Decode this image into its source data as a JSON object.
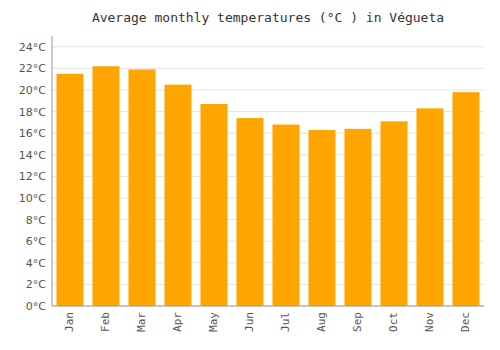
{
  "chart_data": {
    "type": "bar",
    "title": "Average monthly temperatures (°C ) in Végueta",
    "categories": [
      "Jan",
      "Feb",
      "Mar",
      "Apr",
      "May",
      "Jun",
      "Jul",
      "Aug",
      "Sep",
      "Oct",
      "Nov",
      "Dec"
    ],
    "values": [
      21.5,
      22.2,
      21.9,
      20.5,
      18.7,
      17.4,
      16.8,
      16.3,
      16.4,
      17.1,
      18.3,
      19.8
    ],
    "color": "#FFA500",
    "ylim": [
      0,
      25
    ],
    "yticks": [
      {
        "value": 0,
        "label": "0°C"
      },
      {
        "value": 2,
        "label": "2°C"
      },
      {
        "value": 4,
        "label": "4°C"
      },
      {
        "value": 6,
        "label": "6°C"
      },
      {
        "value": 8,
        "label": "8°C"
      },
      {
        "value": 10,
        "label": "10°C"
      },
      {
        "value": 12,
        "label": "12°C"
      },
      {
        "value": 14,
        "label": "14°C"
      },
      {
        "value": 16,
        "label": "16°C"
      },
      {
        "value": 18,
        "label": "18°C"
      },
      {
        "value": 20,
        "label": "20°C"
      },
      {
        "value": 22,
        "label": "22°C"
      },
      {
        "value": 24,
        "label": "24°C"
      }
    ],
    "grid": true
  }
}
